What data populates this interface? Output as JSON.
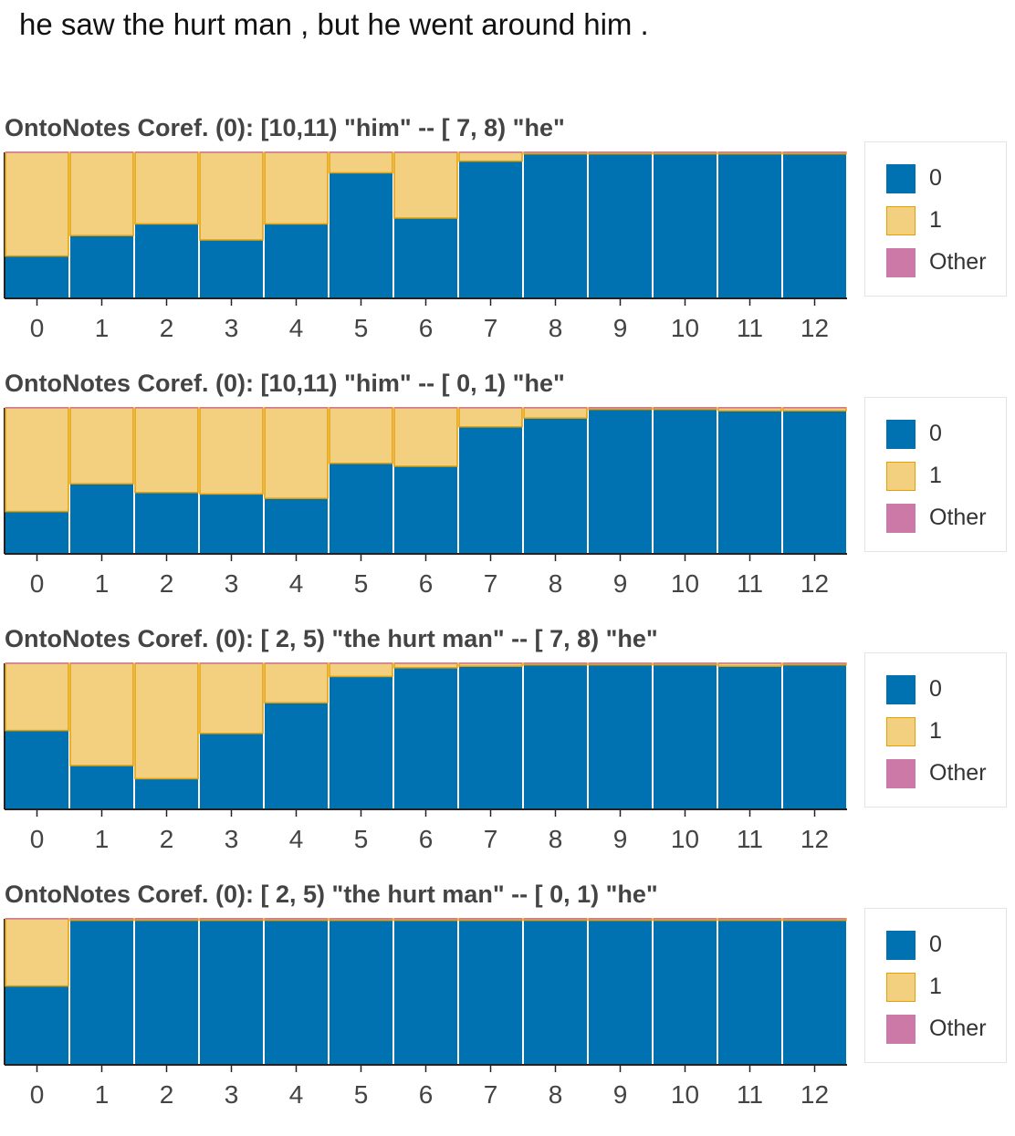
{
  "sentence": "he saw the hurt man , but he went around him .",
  "legend": {
    "items": [
      {
        "label": "0",
        "color": "#0072b2",
        "border": "#0072b2"
      },
      {
        "label": "1",
        "color": "#f2d080",
        "border": "#e69f00"
      },
      {
        "label": "Other",
        "color": "#cc79a7",
        "border": "#cc79a7"
      }
    ]
  },
  "chart_data": [
    {
      "type": "bar",
      "stacked": true,
      "title": "OntoNotes Coref. (0): [10,11) \"him\" -- [ 7, 8) \"he\"",
      "categories": [
        "0",
        "1",
        "2",
        "3",
        "4",
        "5",
        "6",
        "7",
        "8",
        "9",
        "10",
        "11",
        "12"
      ],
      "ylim": [
        0,
        1
      ],
      "series": [
        {
          "name": "0",
          "values": [
            0.29,
            0.43,
            0.51,
            0.4,
            0.51,
            0.86,
            0.55,
            0.94,
            0.99,
            0.99,
            0.99,
            0.99,
            0.99
          ]
        },
        {
          "name": "1",
          "values": [
            0.71,
            0.57,
            0.49,
            0.6,
            0.49,
            0.14,
            0.45,
            0.06,
            0.01,
            0.01,
            0.01,
            0.01,
            0.01
          ]
        },
        {
          "name": "Other",
          "values": [
            0,
            0,
            0,
            0,
            0,
            0,
            0,
            0,
            0,
            0,
            0,
            0,
            0
          ]
        }
      ]
    },
    {
      "type": "bar",
      "stacked": true,
      "title": "OntoNotes Coref. (0): [10,11) \"him\" -- [ 0, 1) \"he\"",
      "categories": [
        "0",
        "1",
        "2",
        "3",
        "4",
        "5",
        "6",
        "7",
        "8",
        "9",
        "10",
        "11",
        "12"
      ],
      "ylim": [
        0,
        1
      ],
      "series": [
        {
          "name": "0",
          "values": [
            0.29,
            0.48,
            0.42,
            0.41,
            0.38,
            0.62,
            0.6,
            0.87,
            0.93,
            0.99,
            0.99,
            0.98,
            0.98
          ]
        },
        {
          "name": "1",
          "values": [
            0.71,
            0.52,
            0.58,
            0.59,
            0.62,
            0.38,
            0.4,
            0.13,
            0.07,
            0.01,
            0.01,
            0.02,
            0.02
          ]
        },
        {
          "name": "Other",
          "values": [
            0,
            0,
            0,
            0,
            0,
            0,
            0,
            0,
            0,
            0,
            0,
            0,
            0
          ]
        }
      ]
    },
    {
      "type": "bar",
      "stacked": true,
      "title": "OntoNotes Coref. (0): [ 2, 5) \"the hurt man\" -- [ 7, 8) \"he\"",
      "categories": [
        "0",
        "1",
        "2",
        "3",
        "4",
        "5",
        "6",
        "7",
        "8",
        "9",
        "10",
        "11",
        "12"
      ],
      "ylim": [
        0,
        1
      ],
      "series": [
        {
          "name": "0",
          "values": [
            0.54,
            0.3,
            0.21,
            0.52,
            0.73,
            0.91,
            0.97,
            0.98,
            0.99,
            0.99,
            0.99,
            0.98,
            0.99
          ]
        },
        {
          "name": "1",
          "values": [
            0.46,
            0.7,
            0.79,
            0.48,
            0.27,
            0.09,
            0.03,
            0.02,
            0.01,
            0.01,
            0.01,
            0.02,
            0.01
          ]
        },
        {
          "name": "Other",
          "values": [
            0,
            0,
            0,
            0,
            0,
            0,
            0,
            0,
            0,
            0,
            0,
            0,
            0
          ]
        }
      ]
    },
    {
      "type": "bar",
      "stacked": true,
      "title": "OntoNotes Coref. (0): [ 2, 5) \"the hurt man\" -- [ 0, 1) \"he\"",
      "categories": [
        "0",
        "1",
        "2",
        "3",
        "4",
        "5",
        "6",
        "7",
        "8",
        "9",
        "10",
        "11",
        "12"
      ],
      "ylim": [
        0,
        1
      ],
      "series": [
        {
          "name": "0",
          "values": [
            0.54,
            0.99,
            0.99,
            0.99,
            0.99,
            0.99,
            0.99,
            0.99,
            0.99,
            0.99,
            0.99,
            0.99,
            0.99
          ]
        },
        {
          "name": "1",
          "values": [
            0.46,
            0.01,
            0.01,
            0.01,
            0.01,
            0.01,
            0.01,
            0.01,
            0.01,
            0.01,
            0.01,
            0.01,
            0.01
          ]
        },
        {
          "name": "Other",
          "values": [
            0,
            0,
            0,
            0,
            0,
            0,
            0,
            0,
            0,
            0,
            0,
            0,
            0
          ]
        }
      ]
    }
  ]
}
